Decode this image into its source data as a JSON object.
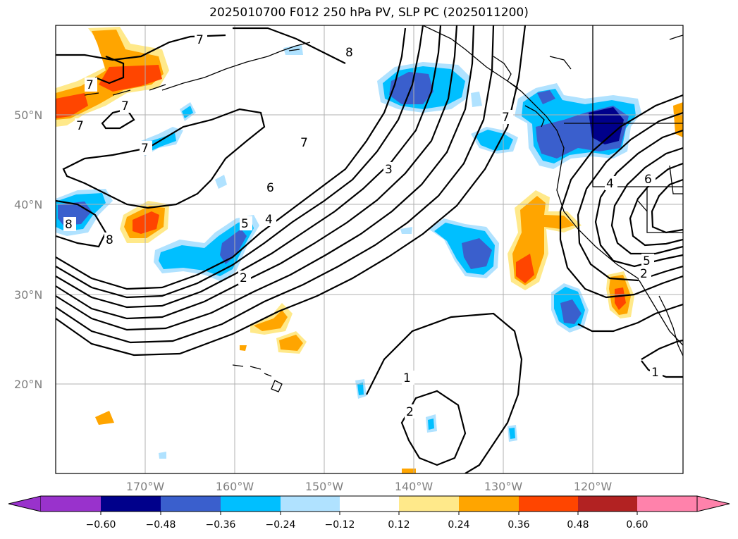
{
  "title": "2025010700 F012 250 hPa PV, SLP PC (2025011200)",
  "map": {
    "extent_lon": [
      -180,
      -110
    ],
    "extent_lat": [
      10,
      60
    ],
    "gridlines": true,
    "lat_ticks": [
      {
        "value": 20,
        "label": "20°N"
      },
      {
        "value": 30,
        "label": "30°N"
      },
      {
        "value": 40,
        "label": "40°N"
      },
      {
        "value": 50,
        "label": "50°N"
      }
    ],
    "lon_ticks": [
      {
        "value": -170,
        "label": "170°W"
      },
      {
        "value": -160,
        "label": "160°W"
      },
      {
        "value": -150,
        "label": "150°W"
      },
      {
        "value": -140,
        "label": "140°W"
      },
      {
        "value": -130,
        "label": "130°W"
      },
      {
        "value": -120,
        "label": "120°W"
      }
    ],
    "contour_labels": [
      "7",
      "7",
      "7",
      "7",
      "8",
      "8",
      "8",
      "7",
      "7",
      "6",
      "5",
      "4",
      "3",
      "2",
      "1",
      "2",
      "1",
      "6",
      "5",
      "4",
      "2",
      "7"
    ]
  },
  "colorbar": {
    "extend": "both",
    "ticks": [
      "−0.60",
      "−0.48",
      "−0.36",
      "−0.24",
      "−0.12",
      "0.12",
      "0.24",
      "0.36",
      "0.48",
      "0.60"
    ],
    "colors": [
      "#9932cc",
      "#00008b",
      "#3a5fcd",
      "#00bfff",
      "#b0e2ff",
      "#ffffff",
      "#ffe98a",
      "#ffa500",
      "#ff4500",
      "#b22222",
      "#ff82ab"
    ]
  }
}
